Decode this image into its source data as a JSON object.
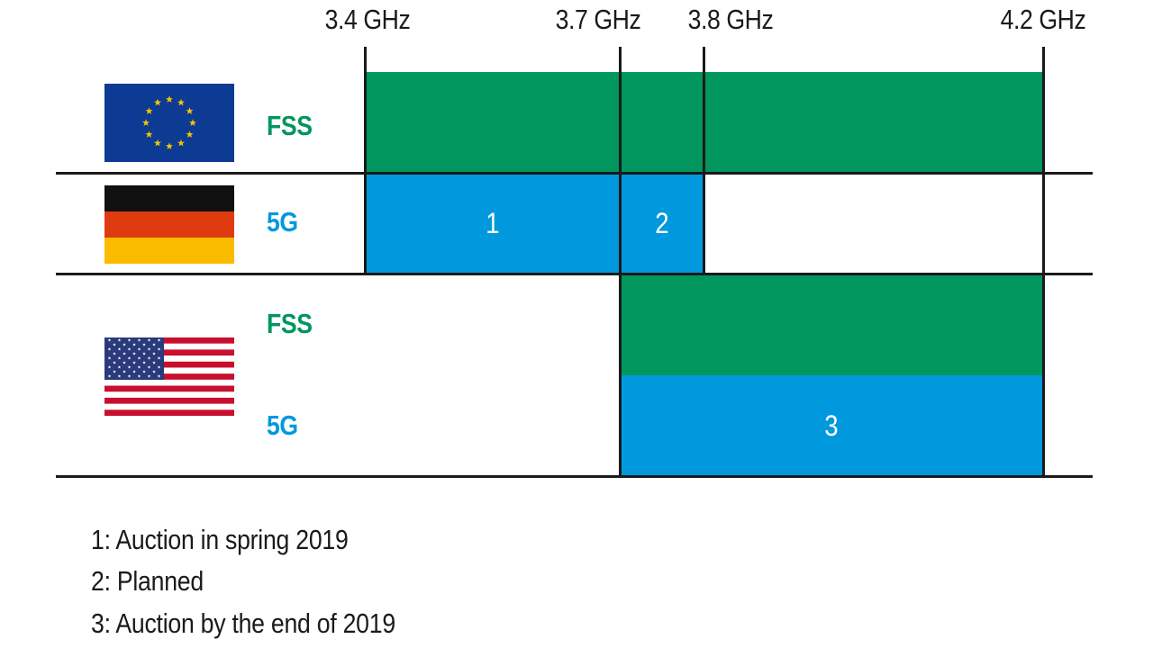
{
  "frequencies": [
    "3.4 GHz",
    "3.7 GHz",
    "3.8 GHz",
    "4.2 GHz"
  ],
  "rows": {
    "eu": {
      "region_icon": "eu-flag-icon",
      "bands": [
        {
          "label": "FSS",
          "color": "#00965e"
        }
      ]
    },
    "de": {
      "region_icon": "germany-flag-icon",
      "bands": [
        {
          "label": "5G",
          "color": "#0099dd"
        }
      ]
    },
    "us": {
      "region_icon": "usa-flag-icon",
      "bands": [
        {
          "label": "FSS",
          "color": "#00965e"
        },
        {
          "label": "5G",
          "color": "#0099dd"
        }
      ]
    }
  },
  "blocks": [
    {
      "row": "eu",
      "band": "FSS",
      "from": "3.4 GHz",
      "to": "4.2 GHz",
      "label": ""
    },
    {
      "row": "de",
      "band": "5G",
      "from": "3.4 GHz",
      "to": "3.7 GHz",
      "label": "1"
    },
    {
      "row": "de",
      "band": "5G",
      "from": "3.7 GHz",
      "to": "3.8 GHz",
      "label": "2"
    },
    {
      "row": "us",
      "band": "FSS",
      "from": "3.7 GHz",
      "to": "4.2 GHz",
      "label": ""
    },
    {
      "row": "us",
      "band": "5G",
      "from": "3.7 GHz",
      "to": "4.2 GHz",
      "label": "3"
    }
  ],
  "notes": [
    "1: Auction in spring 2019",
    "2: Planned",
    "3: Auction by the end of 2019"
  ],
  "colors": {
    "fss": "#00965e",
    "g5": "#0099dd",
    "line": "#1a1a1a"
  }
}
